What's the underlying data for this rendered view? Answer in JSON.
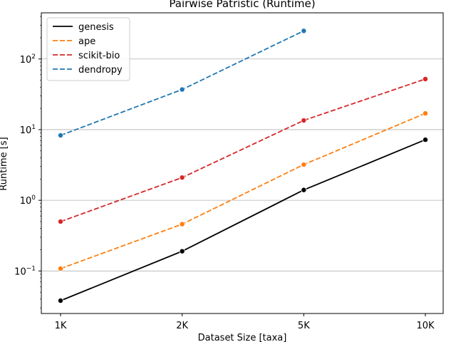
{
  "chart_data": {
    "type": "line",
    "title": "Pairwise Patristic  (Runtime)",
    "xlabel": "Dataset Size  [taxa]",
    "ylabel": "Runtime  [s]",
    "yscale": "log",
    "ylim": [
      0.025,
      450
    ],
    "grid": "y-major",
    "legend_position": "top-left",
    "categories": [
      "1K",
      "2K",
      "5K",
      "10K"
    ],
    "y_ticks": [
      {
        "value": 0.1,
        "base": "10",
        "exp": "−1"
      },
      {
        "value": 1,
        "base": "10",
        "exp": "0"
      },
      {
        "value": 10,
        "base": "10",
        "exp": "1"
      },
      {
        "value": 100,
        "base": "10",
        "exp": "2"
      }
    ],
    "series": [
      {
        "name": "genesis",
        "color": "#000000",
        "dashed": false,
        "values": [
          0.038,
          0.19,
          1.4,
          7.2
        ]
      },
      {
        "name": "ape",
        "color": "#ff7f0e",
        "dashed": true,
        "values": [
          0.108,
          0.46,
          3.2,
          17
        ]
      },
      {
        "name": "scikit-bio",
        "color": "#d62728",
        "dashed": true,
        "values": [
          0.5,
          2.1,
          13.5,
          52
        ]
      },
      {
        "name": "dendropy",
        "color": "#1f77b4",
        "dashed": true,
        "values": [
          8.3,
          37,
          null,
          null
        ],
        "extra_points": [
          {
            "x_index": 2,
            "value": 250
          }
        ]
      }
    ]
  }
}
